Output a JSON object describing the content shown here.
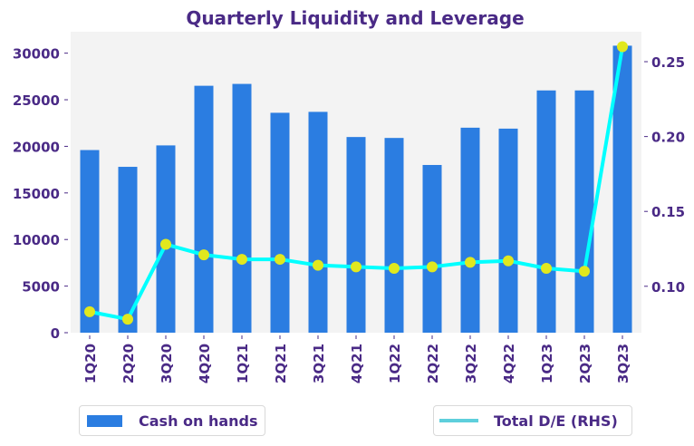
{
  "chart_data": {
    "type": "bar+line",
    "title": "Quarterly Liquidity and Leverage",
    "xlabel": "",
    "ylabel": "",
    "ylabel_right": "",
    "categories": [
      "1Q20",
      "2Q20",
      "3Q20",
      "4Q20",
      "1Q21",
      "2Q21",
      "3Q21",
      "4Q21",
      "1Q22",
      "2Q22",
      "3Q22",
      "4Q22",
      "1Q23",
      "2Q23",
      "3Q23"
    ],
    "series": [
      {
        "name": "Cash on hands",
        "type": "bar",
        "axis": "left",
        "color": "#2b7de1",
        "values": [
          19600,
          17800,
          20100,
          26500,
          26700,
          23600,
          23700,
          21000,
          20900,
          18000,
          22000,
          21900,
          26000,
          26000,
          30800
        ]
      },
      {
        "name": "Total D/E (RHS)",
        "type": "line",
        "axis": "right",
        "color": "#00ffff",
        "legend_color": "#5ecfdc",
        "marker_color": "#e1e81e",
        "values": [
          0.083,
          0.078,
          0.128,
          0.121,
          0.118,
          0.118,
          0.114,
          0.113,
          0.112,
          0.113,
          0.116,
          0.117,
          0.112,
          0.11,
          0.26
        ]
      }
    ],
    "ylim": [
      0,
      32300
    ],
    "yticks": [
      0,
      5000,
      10000,
      15000,
      20000,
      25000,
      30000
    ],
    "ylim_right": [
      0.069,
      0.27
    ],
    "yticks_right": [
      "0.10",
      "0.15",
      "0.20",
      "0.25"
    ],
    "grid": false,
    "plot_background": "#f3f3f3",
    "text_color": "#4a2a86",
    "legend": [
      {
        "label": "Cash on hands",
        "placement": "bottom-left"
      },
      {
        "label": "Total D/E (RHS)",
        "placement": "bottom-right"
      }
    ]
  }
}
